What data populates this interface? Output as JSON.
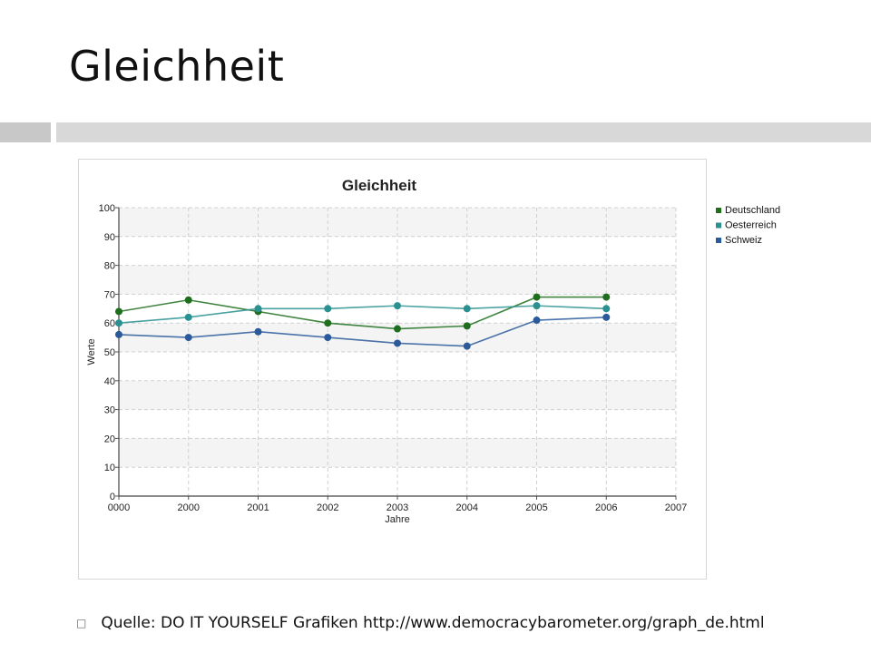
{
  "slide": {
    "title": "Gleichheit",
    "bullet_glyph": "□",
    "footer_text": "Quelle: DO IT YOURSELF Grafiken http://www.democracybarometer.org/graph_de.html"
  },
  "chart_data": {
    "type": "line",
    "title": "Gleichheit",
    "xlabel": "Jahre",
    "ylabel": "Werte",
    "categories": [
      "0000",
      "2000",
      "2001",
      "2002",
      "2003",
      "2004",
      "2005",
      "2006",
      "2007"
    ],
    "ylim": [
      0,
      100
    ],
    "yticks": [
      0,
      10,
      20,
      30,
      40,
      50,
      60,
      70,
      80,
      90,
      100
    ],
    "grid": true,
    "legend_position": "right",
    "series": [
      {
        "name": "Deutschland",
        "color": "#1e6e1e",
        "values": [
          64,
          68,
          64,
          60,
          58,
          59,
          69,
          69,
          null
        ]
      },
      {
        "name": "Oesterreich",
        "color": "#2a9090",
        "values": [
          60,
          62,
          65,
          65,
          66,
          65,
          66,
          65,
          null
        ]
      },
      {
        "name": "Schweiz",
        "color": "#2a5a9a",
        "values": [
          56,
          55,
          57,
          55,
          53,
          52,
          61,
          62,
          null
        ]
      }
    ]
  }
}
